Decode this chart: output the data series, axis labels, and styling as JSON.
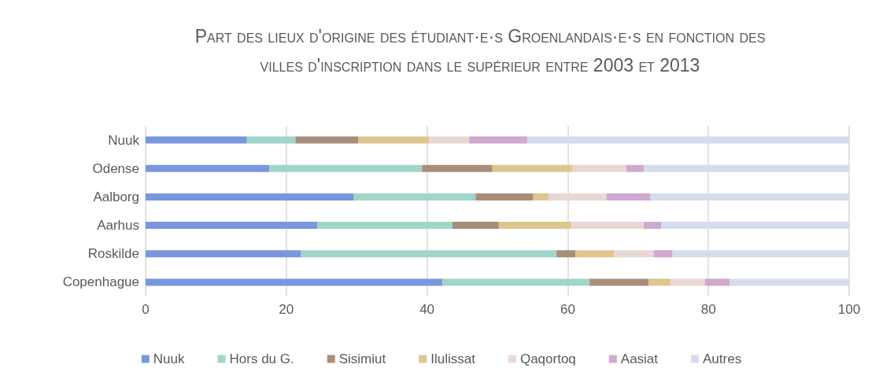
{
  "chart_data": {
    "type": "bar",
    "orientation": "horizontal",
    "stacked": true,
    "title": "Part des lieux d'origine des étudiant·e·s Groenlandais·e·s  en fonction des villes d'inscription dans le supérieur entre 2003 et 2013",
    "categories": [
      "Nuuk",
      "Odense",
      "Aalborg",
      "Aarhus",
      "Roskilde",
      "Copenhague"
    ],
    "series": [
      {
        "name": "Nuuk",
        "color": "#7a96de",
        "values": [
          14.4,
          17.6,
          29.6,
          24.4,
          22.1,
          42.2
        ]
      },
      {
        "name": "Hors du G.",
        "color": "#9fd6c9",
        "values": [
          6.9,
          21.7,
          17.3,
          19.2,
          36.3,
          20.9
        ]
      },
      {
        "name": "Sisimiut",
        "color": "#a68e7a",
        "values": [
          8.9,
          10.0,
          8.2,
          6.6,
          2.7,
          8.4
        ]
      },
      {
        "name": "Ilulissat",
        "color": "#dfc58e",
        "values": [
          10.1,
          11.4,
          2.2,
          10.3,
          5.5,
          3.1
        ]
      },
      {
        "name": "Qaqortoq",
        "color": "#e8d8d4",
        "values": [
          5.7,
          7.6,
          8.2,
          10.3,
          5.6,
          4.9
        ]
      },
      {
        "name": "Aasiat",
        "color": "#d0a8d0",
        "values": [
          8.3,
          2.5,
          6.2,
          2.5,
          2.7,
          3.5
        ]
      },
      {
        "name": "Autres",
        "color": "#d6dcec",
        "values": [
          45.7,
          29.2,
          28.3,
          26.7,
          25.1,
          17.0
        ]
      }
    ],
    "xlim": [
      0,
      100
    ],
    "xticks": [
      0,
      20,
      40,
      60,
      80,
      100
    ],
    "grid": "x",
    "legend": "bottom"
  }
}
